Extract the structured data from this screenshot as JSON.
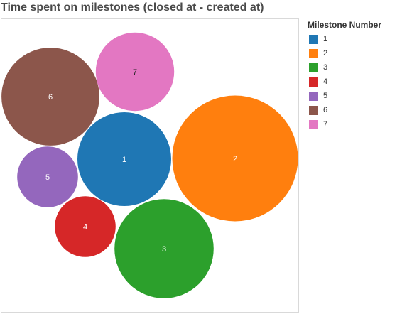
{
  "chart_data": {
    "type": "bubble",
    "title": "Time spent on milestones (closed at - created at)",
    "legend": {
      "title": "Milestone Number",
      "placement": "right"
    },
    "series": [
      {
        "label": "1",
        "relative_size": 1.0,
        "color": "#1f77b4"
      },
      {
        "label": "2",
        "relative_size": 1.8,
        "color": "#ff7f0e"
      },
      {
        "label": "3",
        "relative_size": 1.12,
        "color": "#2ca02c"
      },
      {
        "label": "4",
        "relative_size": 0.42,
        "color": "#d62728"
      },
      {
        "label": "5",
        "relative_size": 0.42,
        "color": "#9467bd"
      },
      {
        "label": "6",
        "relative_size": 1.09,
        "color": "#8c564b"
      },
      {
        "label": "7",
        "relative_size": 0.7,
        "color": "#e377c2"
      }
    ]
  }
}
